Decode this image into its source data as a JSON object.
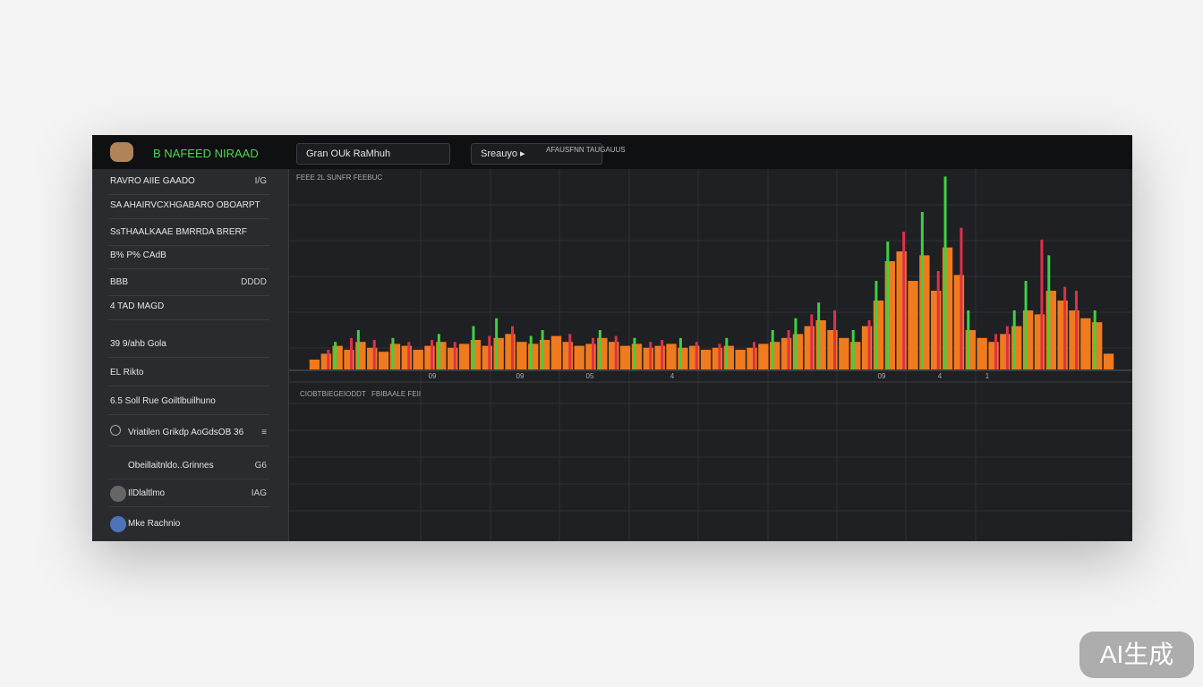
{
  "header": {
    "brand": "B NAFEED NIRAAD",
    "tab": "Gran OUk RaMhuh",
    "search": "Sreauyo ▸",
    "search_hint": "AFAUSFNN TAUGAUUS"
  },
  "sidebar": [
    {
      "label": "RAVRO AIIE GAADO",
      "value": "I/G"
    },
    {
      "label": "SA AHAIRVCXHGABARO OBOARPT"
    },
    {
      "label": "SsTHAALKAAE BMRRDA BRERF"
    },
    {
      "label": "B% P% CAdB"
    },
    {
      "label": "BBB",
      "value": "DDDD"
    },
    {
      "label": "4 TAD MAGD"
    },
    {
      "label": "39 9/ahb Gola"
    },
    {
      "label": "EL Rikto"
    },
    {
      "label": "6.5 Soll Rue Goiltlbuilhuno"
    },
    {
      "label": "Vriatilen Grikdp AoGdsOB 36",
      "value": "≡"
    },
    {
      "label": "Obeillaitnldo..Grinnes",
      "value": "G6"
    },
    {
      "label": "IlDlaltlmo",
      "value": "IAG"
    },
    {
      "label": "Mke Rachnio"
    }
  ],
  "chart": {
    "label": "FEEE 2L SUNFR FEEBUC",
    "lower_label": "CIOBTBIEGEIODDT",
    "lower_label_2": "FBIBAALE FEII",
    "x_labels": [
      "09",
      "09",
      "05",
      "4",
      "09",
      "4",
      "1"
    ],
    "ylim": [
      0,
      100
    ],
    "series": [
      {
        "color": "#f07a1e",
        "values": [
          5,
          8,
          12,
          10,
          14,
          11,
          9,
          13,
          12,
          10,
          12,
          14,
          11,
          13,
          15,
          12,
          16,
          18,
          14,
          13,
          15,
          17,
          14,
          12,
          13,
          16,
          14,
          12,
          13,
          11,
          12,
          13,
          11,
          12,
          10,
          11,
          12,
          10,
          11,
          13,
          14,
          16,
          18,
          22,
          25,
          20,
          16,
          14,
          22,
          35,
          55,
          60,
          45,
          58,
          40,
          62,
          48,
          20,
          16,
          14,
          18,
          22,
          30,
          28,
          40,
          35,
          30,
          26,
          24,
          8
        ]
      },
      {
        "color": "#3fd13f",
        "values": [
          null,
          null,
          14,
          null,
          20,
          null,
          null,
          16,
          null,
          null,
          null,
          18,
          null,
          null,
          22,
          null,
          26,
          null,
          null,
          17,
          20,
          null,
          null,
          null,
          null,
          20,
          null,
          null,
          16,
          null,
          null,
          null,
          16,
          null,
          null,
          null,
          16,
          null,
          null,
          null,
          20,
          null,
          26,
          null,
          34,
          null,
          null,
          20,
          null,
          45,
          65,
          null,
          null,
          80,
          null,
          98,
          null,
          30,
          null,
          null,
          null,
          30,
          45,
          null,
          58,
          null,
          null,
          null,
          30,
          null
        ]
      },
      {
        "color": "#e0304a",
        "values": [
          null,
          10,
          null,
          16,
          null,
          15,
          null,
          null,
          14,
          null,
          15,
          null,
          14,
          null,
          null,
          17,
          null,
          22,
          null,
          null,
          null,
          null,
          18,
          null,
          16,
          null,
          17,
          null,
          null,
          14,
          15,
          null,
          null,
          14,
          null,
          13,
          null,
          null,
          14,
          null,
          null,
          20,
          null,
          28,
          null,
          30,
          null,
          null,
          25,
          null,
          null,
          70,
          null,
          null,
          50,
          null,
          72,
          null,
          null,
          18,
          22,
          null,
          null,
          66,
          null,
          42,
          40,
          null,
          null,
          null
        ]
      }
    ]
  },
  "watermark": "AI生成"
}
